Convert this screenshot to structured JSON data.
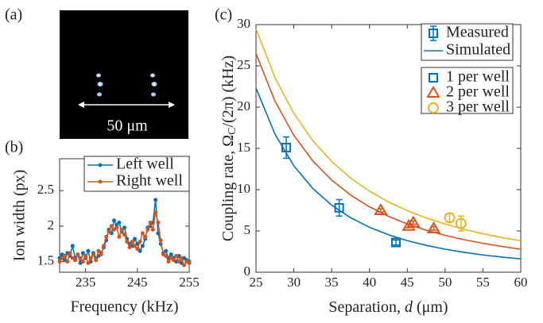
{
  "panel_labels": [
    "(a)",
    "(b)",
    "(c)"
  ],
  "image": {
    "scale_label": "50 μm"
  },
  "chart_data": [
    {
      "type": "line",
      "xlabel": "Frequency (kHz)",
      "ylabel": "Ion width (px)",
      "xlim": [
        230,
        255
      ],
      "ylim": [
        1.35,
        2.95
      ],
      "xticks": [
        235,
        245,
        255
      ],
      "yticks": [
        1.5,
        2,
        2.5
      ],
      "x": [
        230,
        230.5,
        231,
        231.5,
        232,
        232.5,
        233,
        233.5,
        234,
        234.5,
        235,
        235.5,
        236,
        236.5,
        237,
        237.5,
        238,
        238.5,
        239,
        239.5,
        240,
        240.5,
        241,
        241.5,
        242,
        242.5,
        243,
        243.5,
        244,
        244.5,
        245,
        245.5,
        246,
        246.5,
        247,
        247.5,
        248,
        248.5,
        249,
        249.5,
        250,
        250.5,
        251,
        251.5,
        252,
        252.5,
        253,
        253.5,
        254,
        254.5,
        255
      ],
      "series": [
        {
          "name": "Left well",
          "color": "#0072BD",
          "values": [
            1.55,
            1.6,
            1.52,
            1.62,
            1.58,
            1.72,
            1.55,
            1.6,
            1.48,
            1.62,
            1.55,
            1.65,
            1.5,
            1.62,
            1.55,
            1.58,
            1.62,
            1.7,
            1.8,
            1.95,
            1.9,
            2.08,
            2.02,
            2.05,
            1.92,
            1.98,
            1.82,
            1.75,
            1.72,
            1.82,
            1.75,
            1.65,
            1.72,
            1.82,
            1.98,
            2.0,
            2.05,
            2.37,
            1.9,
            1.75,
            1.62,
            1.65,
            1.55,
            1.6,
            1.55,
            1.5,
            1.58,
            1.48,
            1.55,
            1.52,
            1.5
          ]
        },
        {
          "name": "Right well",
          "color": "#D95319",
          "values": [
            1.5,
            1.55,
            1.58,
            1.5,
            1.62,
            1.55,
            1.52,
            1.6,
            1.55,
            1.5,
            1.58,
            1.48,
            1.55,
            1.6,
            1.52,
            1.65,
            1.6,
            1.72,
            1.85,
            1.92,
            2.0,
            1.95,
            1.98,
            1.85,
            1.95,
            1.88,
            1.78,
            1.7,
            1.78,
            1.72,
            1.68,
            1.78,
            1.9,
            1.85,
            1.95,
            2.05,
            1.95,
            2.2,
            2.05,
            1.8,
            1.6,
            1.58,
            1.5,
            1.55,
            1.52,
            1.58,
            1.5,
            1.55,
            1.45,
            1.5,
            1.48
          ]
        }
      ]
    },
    {
      "type": "scatter",
      "xlabel": [
        "Separation, ",
        "d",
        " (μm)"
      ],
      "ylabel": [
        "Coupling rate, Ω",
        "C",
        "/(2π) (kHz)"
      ],
      "xlim": [
        25,
        60
      ],
      "ylim": [
        0,
        30
      ],
      "xticks": [
        25,
        30,
        35,
        40,
        45,
        50,
        55,
        60
      ],
      "yticks": [
        0,
        5,
        10,
        15,
        20,
        25,
        30
      ],
      "measured_label": "Measured",
      "series": [
        {
          "name": "1 per well",
          "color": "#0072BD",
          "marker": "square",
          "x": [
            29,
            36,
            43.5
          ],
          "values": [
            15.1,
            7.8,
            3.6
          ],
          "errors": [
            1.3,
            1.0,
            0.3
          ]
        },
        {
          "name": "2 per well",
          "color": "#D95319",
          "marker": "triangle",
          "x": [
            41.5,
            45.2,
            45.8,
            48.5
          ],
          "values": [
            7.5,
            5.6,
            6.0,
            5.3
          ],
          "errors": [
            0.2,
            0.2,
            0.2,
            0.2
          ]
        },
        {
          "name": "3 per well",
          "color": "#EDB120",
          "marker": "circle",
          "x": [
            50.6,
            52.1
          ],
          "values": [
            6.6,
            5.9
          ],
          "errors": [
            0.5,
            0.9
          ]
        }
      ],
      "simulated": {
        "name": "Simulated",
        "x": [
          25,
          27.5,
          30,
          32.5,
          35,
          37.5,
          40,
          42.5,
          45,
          47.5,
          50,
          52.5,
          55,
          57.5,
          60
        ],
        "curves": [
          {
            "color": "#0072BD",
            "values": [
              22.3,
              16.75,
              12.9,
              10.15,
              8.13,
              6.61,
              5.44,
              4.54,
              3.82,
              3.25,
              2.79,
              2.41,
              2.09,
              1.83,
              1.61
            ]
          },
          {
            "color": "#D95319",
            "values": [
              26.5,
              20.75,
              16.59,
              13.5,
              11.16,
              9.35,
              7.92,
              6.78,
              5.85,
              5.09,
              4.46,
              3.94,
              3.5,
              3.12,
              2.79
            ]
          },
          {
            "color": "#EDB120",
            "values": [
              29.5,
              23.6,
              19.26,
              15.96,
              13.42,
              11.42,
              9.82,
              8.53,
              7.46,
              6.58,
              5.84,
              5.19,
              4.66,
              4.19,
              3.81
            ]
          }
        ]
      }
    }
  ]
}
